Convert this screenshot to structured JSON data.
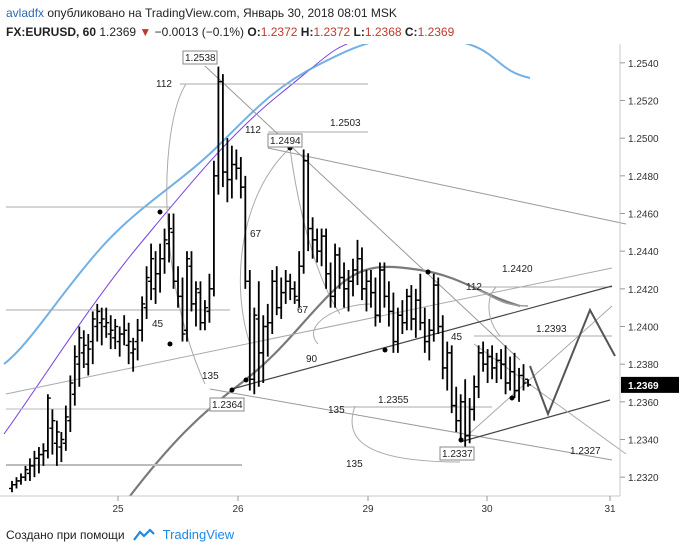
{
  "header": {
    "author": "avladfx",
    "published": "опубликовано на TradingView.com, Январь 30, 2018 08:01 MSK",
    "symbol": "FX:EURUSD, 60",
    "last": "1.2369",
    "change": "−0.0013 (−0.1%)",
    "o_label": "O:",
    "o": "1.2372",
    "h_label": "H:",
    "h": "1.2372",
    "l_label": "L:",
    "l": "1.2368",
    "c_label": "C:",
    "c": "1.2369"
  },
  "footer": {
    "created": "Создано при помощи",
    "brand": "TradingView"
  },
  "colors": {
    "up": "#000000",
    "down": "#000000",
    "ma_blue": "#5aa3e0",
    "ma_purple": "#7b3fe4",
    "ma_gray": "#7a7a7a",
    "price_tag": "#000000"
  },
  "chart_data": {
    "type": "line",
    "title": "",
    "xlabel": "",
    "ylabel": "",
    "ylim": [
      1.231,
      1.255
    ],
    "x_ticks": [
      "25",
      "26",
      "29",
      "30",
      "31"
    ],
    "y_ticks": [
      "1.2540",
      "1.2520",
      "1.2500",
      "1.2480",
      "1.2460",
      "1.2440",
      "1.2420",
      "1.2400",
      "1.2380",
      "1.2360",
      "1.2340",
      "1.2320"
    ],
    "current_price": "1.2369",
    "series": [
      {
        "type": "ohlc",
        "values": [
          [
            1.2314,
            1.2318,
            1.2312,
            1.2316
          ],
          [
            1.2316,
            1.232,
            1.2314,
            1.2318
          ],
          [
            1.2318,
            1.2322,
            1.2316,
            1.232
          ],
          [
            1.232,
            1.2326,
            1.2318,
            1.2324
          ],
          [
            1.2322,
            1.233,
            1.2318,
            1.2326
          ],
          [
            1.2326,
            1.2334,
            1.232,
            1.233
          ],
          [
            1.233,
            1.2336,
            1.2322,
            1.2332
          ],
          [
            1.2332,
            1.2338,
            1.2326,
            1.2334
          ],
          [
            1.2334,
            1.2364,
            1.233,
            1.2362
          ],
          [
            1.2346,
            1.2356,
            1.2332,
            1.235
          ],
          [
            1.2338,
            1.235,
            1.2326,
            1.2344
          ],
          [
            1.2336,
            1.2344,
            1.2328,
            1.234
          ],
          [
            1.2338,
            1.2358,
            1.2334,
            1.2352
          ],
          [
            1.235,
            1.2374,
            1.2344,
            1.237
          ],
          [
            1.2364,
            1.239,
            1.2358,
            1.2384
          ],
          [
            1.238,
            1.24,
            1.2368,
            1.2394
          ],
          [
            1.2386,
            1.2398,
            1.2378,
            1.239
          ],
          [
            1.238,
            1.2396,
            1.2374,
            1.2388
          ],
          [
            1.2392,
            1.2408,
            1.238,
            1.2404
          ],
          [
            1.24,
            1.2412,
            1.2392,
            1.2408
          ],
          [
            1.2402,
            1.241,
            1.239,
            1.2404
          ],
          [
            1.24,
            1.241,
            1.2394,
            1.2402
          ],
          [
            1.2396,
            1.2406,
            1.2388,
            1.2398
          ],
          [
            1.2394,
            1.2404,
            1.2388,
            1.24
          ],
          [
            1.2392,
            1.24,
            1.2384,
            1.2396
          ],
          [
            1.2396,
            1.2406,
            1.239,
            1.2398
          ],
          [
            1.239,
            1.2402,
            1.238,
            1.2392
          ],
          [
            1.2386,
            1.2394,
            1.2376,
            1.2388
          ],
          [
            1.2392,
            1.2404,
            1.2382,
            1.2398
          ],
          [
            1.2398,
            1.2416,
            1.2392,
            1.2412
          ],
          [
            1.241,
            1.2432,
            1.2404,
            1.2426
          ],
          [
            1.2424,
            1.2444,
            1.2414,
            1.2436
          ],
          [
            1.242,
            1.244,
            1.2412,
            1.2428
          ],
          [
            1.2428,
            1.2444,
            1.2418,
            1.2436
          ],
          [
            1.2436,
            1.2452,
            1.2428,
            1.2446
          ],
          [
            1.2444,
            1.246,
            1.2434,
            1.2452
          ],
          [
            1.245,
            1.246,
            1.242,
            1.2424
          ],
          [
            1.2424,
            1.2432,
            1.241,
            1.2416
          ],
          [
            1.2416,
            1.2426,
            1.2392,
            1.2396
          ],
          [
            1.2398,
            1.244,
            1.2392,
            1.2436
          ],
          [
            1.2432,
            1.244,
            1.2408,
            1.2412
          ],
          [
            1.2412,
            1.2424,
            1.24,
            1.242
          ],
          [
            1.2418,
            1.2424,
            1.2398,
            1.2402
          ],
          [
            1.2402,
            1.2414,
            1.2398,
            1.241
          ],
          [
            1.2408,
            1.2428,
            1.2402,
            1.242
          ],
          [
            1.242,
            1.2488,
            1.2416,
            1.248
          ],
          [
            1.248,
            1.2538,
            1.247,
            1.253
          ],
          [
            1.253,
            1.2534,
            1.2474,
            1.2482
          ],
          [
            1.2482,
            1.25,
            1.2466,
            1.2478
          ],
          [
            1.2478,
            1.2496,
            1.2468,
            1.2486
          ],
          [
            1.2486,
            1.2494,
            1.2478,
            1.2484
          ],
          [
            1.2484,
            1.249,
            1.2468,
            1.2474
          ],
          [
            1.2474,
            1.248,
            1.242,
            1.2424
          ],
          [
            1.2424,
            1.243,
            1.2366,
            1.2372
          ],
          [
            1.2372,
            1.241,
            1.2364,
            1.2406
          ],
          [
            1.2404,
            1.2424,
            1.2368,
            1.2386
          ],
          [
            1.2386,
            1.2406,
            1.237,
            1.24
          ],
          [
            1.24,
            1.2412,
            1.2384,
            1.2402
          ],
          [
            1.2402,
            1.243,
            1.2396,
            1.2424
          ],
          [
            1.2424,
            1.2432,
            1.2406,
            1.241
          ],
          [
            1.241,
            1.2426,
            1.2404,
            1.2418
          ],
          [
            1.2418,
            1.243,
            1.2412,
            1.2424
          ],
          [
            1.2424,
            1.2428,
            1.2414,
            1.242
          ],
          [
            1.242,
            1.2424,
            1.2412,
            1.2416
          ],
          [
            1.2414,
            1.244,
            1.241,
            1.2432
          ],
          [
            1.2432,
            1.2494,
            1.2428,
            1.2488
          ],
          [
            1.2488,
            1.2492,
            1.244,
            1.2452
          ],
          [
            1.2452,
            1.2458,
            1.2436,
            1.2446
          ],
          [
            1.2446,
            1.2452,
            1.2434,
            1.244
          ],
          [
            1.244,
            1.2452,
            1.2432,
            1.2448
          ],
          [
            1.2448,
            1.2452,
            1.242,
            1.2428
          ],
          [
            1.2428,
            1.2434,
            1.241,
            1.2416
          ],
          [
            1.2416,
            1.2444,
            1.241,
            1.2438
          ],
          [
            1.2438,
            1.2442,
            1.242,
            1.2426
          ],
          [
            1.2426,
            1.2434,
            1.241,
            1.242
          ],
          [
            1.242,
            1.243,
            1.2408,
            1.2424
          ],
          [
            1.2424,
            1.2436,
            1.2416,
            1.243
          ],
          [
            1.243,
            1.2446,
            1.2422,
            1.2436
          ],
          [
            1.2436,
            1.2442,
            1.2414,
            1.242
          ],
          [
            1.242,
            1.243,
            1.2408,
            1.2424
          ],
          [
            1.2424,
            1.243,
            1.241,
            1.2418
          ],
          [
            1.2418,
            1.2426,
            1.24,
            1.2406
          ],
          [
            1.2406,
            1.2434,
            1.2402,
            1.243
          ],
          [
            1.243,
            1.2434,
            1.241,
            1.2416
          ],
          [
            1.2416,
            1.2424,
            1.24,
            1.2408
          ],
          [
            1.2408,
            1.2418,
            1.2386,
            1.2392
          ],
          [
            1.2392,
            1.241,
            1.2386,
            1.2406
          ],
          [
            1.2406,
            1.2414,
            1.2396,
            1.2402
          ],
          [
            1.2402,
            1.242,
            1.2398,
            1.2416
          ],
          [
            1.2416,
            1.2422,
            1.2398,
            1.2404
          ],
          [
            1.2404,
            1.242,
            1.2394,
            1.2414
          ],
          [
            1.2414,
            1.2428,
            1.2398,
            1.2402
          ],
          [
            1.2402,
            1.241,
            1.2386,
            1.2392
          ],
          [
            1.2392,
            1.2404,
            1.2382,
            1.2398
          ],
          [
            1.2398,
            1.2428,
            1.2392,
            1.2422
          ],
          [
            1.2422,
            1.2426,
            1.2396,
            1.24
          ],
          [
            1.24,
            1.2406,
            1.2372,
            1.2378
          ],
          [
            1.2378,
            1.2392,
            1.2366,
            1.2386
          ],
          [
            1.2386,
            1.239,
            1.2354,
            1.2358
          ],
          [
            1.2358,
            1.2368,
            1.2344,
            1.235
          ],
          [
            1.235,
            1.2364,
            1.234,
            1.236
          ],
          [
            1.236,
            1.2372,
            1.2336,
            1.2342
          ],
          [
            1.2342,
            1.2362,
            1.2338,
            1.2356
          ],
          [
            1.2356,
            1.2374,
            1.235,
            1.2368
          ],
          [
            1.2368,
            1.239,
            1.2362,
            1.2386
          ],
          [
            1.2386,
            1.2392,
            1.2376,
            1.238
          ],
          [
            1.238,
            1.2388,
            1.237,
            1.2384
          ],
          [
            1.2384,
            1.239,
            1.2372,
            1.2378
          ],
          [
            1.2378,
            1.2386,
            1.237,
            1.2382
          ],
          [
            1.2382,
            1.2388,
            1.2372,
            1.238
          ],
          [
            1.238,
            1.239,
            1.2364,
            1.237
          ],
          [
            1.237,
            1.2384,
            1.2366,
            1.2376
          ],
          [
            1.2376,
            1.2386,
            1.2362,
            1.2366
          ],
          [
            1.2366,
            1.2378,
            1.236,
            1.2374
          ],
          [
            1.2374,
            1.238,
            1.2366,
            1.237
          ],
          [
            1.2372,
            1.2372,
            1.2368,
            1.2369
          ]
        ]
      }
    ],
    "annotations": [
      "1.2538",
      "1.2494",
      "1.2503",
      "1.2420",
      "1.2393",
      "1.2364",
      "1.2355",
      "1.2337",
      "1.2327",
      "112",
      "112",
      "67",
      "67",
      "45",
      "45",
      "90",
      "135",
      "135",
      "112",
      "135"
    ],
    "grid": false
  }
}
